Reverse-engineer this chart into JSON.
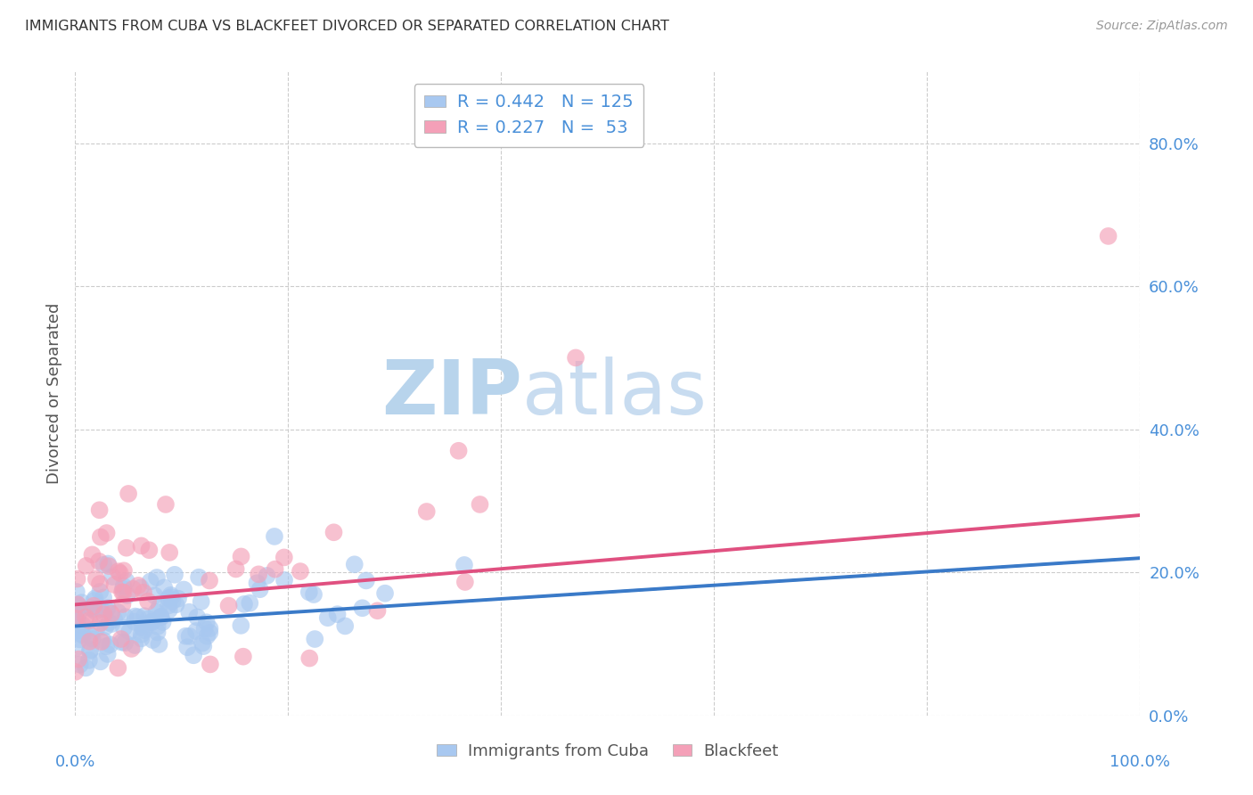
{
  "title": "IMMIGRANTS FROM CUBA VS BLACKFEET DIVORCED OR SEPARATED CORRELATION CHART",
  "source": "Source: ZipAtlas.com",
  "ylabel": "Divorced or Separated",
  "legend_label1": "Immigrants from Cuba",
  "legend_label2": "Blackfeet",
  "r1": 0.442,
  "n1": 125,
  "r2": 0.227,
  "n2": 53,
  "color_blue": "#A8C8F0",
  "color_pink": "#F4A0B8",
  "trend_blue": "#3A7AC8",
  "trend_pink": "#E05080",
  "watermark_zip": "ZIP",
  "watermark_atlas": "atlas",
  "watermark_color_zip": "#C8DFF0",
  "watermark_color_atlas": "#C8DFF0",
  "background": "#FFFFFF",
  "grid_color": "#CCCCCC",
  "title_color": "#333333",
  "axis_label_color": "#555555",
  "ytick_color": "#4A90D9",
  "xtick_color": "#555555",
  "seed": 12345,
  "ylim_max": 0.9,
  "xlim_max": 1.0,
  "ytick_positions": [
    0.0,
    0.2,
    0.4,
    0.6,
    0.8
  ],
  "ytick_labels": [
    "0.0%",
    "20.0%",
    "40.0%",
    "60.0%",
    "80.0%"
  ],
  "xtick_positions": [
    0.0,
    0.2,
    0.4,
    0.6,
    0.8,
    1.0
  ]
}
